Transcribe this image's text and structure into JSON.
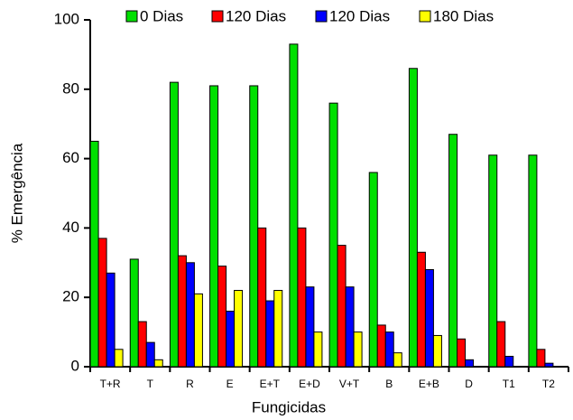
{
  "chart_data": {
    "type": "bar",
    "xlabel": "Fungicidas",
    "ylabel": "% Emergência",
    "categories": [
      "T+R",
      "T",
      "R",
      "E",
      "E+T",
      "E+D",
      "V+T",
      "B",
      "E+B",
      "D",
      "T1",
      "T2"
    ],
    "series": [
      {
        "name": "0 Dias",
        "color": "#00e000",
        "values": [
          65,
          31,
          82,
          81,
          81,
          93,
          76,
          56,
          86,
          67,
          61,
          61
        ]
      },
      {
        "name": "120 Dias",
        "color": "#ff0000",
        "values": [
          37,
          13,
          32,
          29,
          40,
          40,
          35,
          12,
          33,
          8,
          13,
          5
        ]
      },
      {
        "name": "120 Dias",
        "color": "#0000ff",
        "values": [
          27,
          7,
          30,
          16,
          19,
          23,
          23,
          10,
          28,
          2,
          3,
          1
        ]
      },
      {
        "name": "180 Dias",
        "color": "#ffff00",
        "values": [
          5,
          2,
          21,
          22,
          22,
          10,
          10,
          4,
          9,
          0,
          0,
          0
        ]
      }
    ],
    "ylim": [
      0,
      100
    ],
    "yticks": [
      0,
      20,
      40,
      60,
      80,
      100
    ],
    "grid": false
  }
}
